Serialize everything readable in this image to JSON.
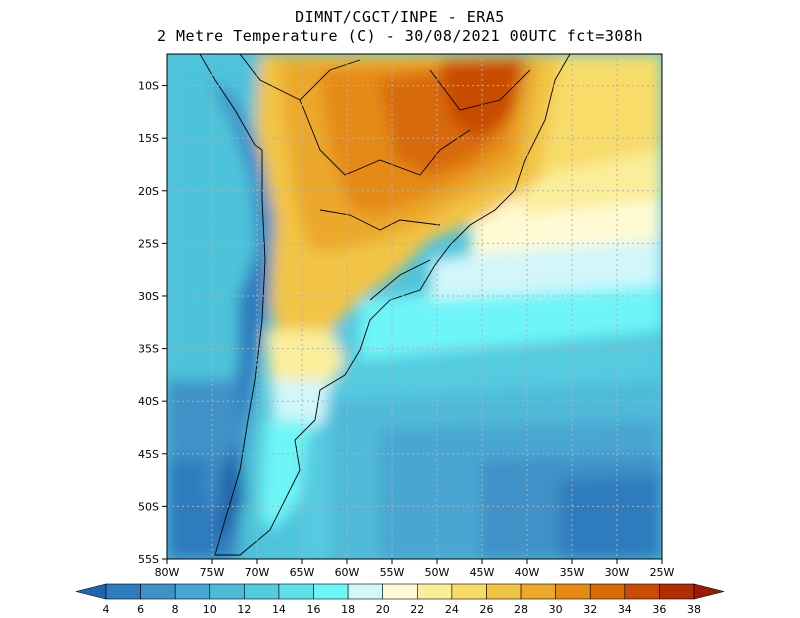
{
  "header": {
    "line1": "DIMNT/CGCT/INPE -  ERA5",
    "line2": "2 Metre Temperature (C) -  30/08/2021 00UTC fct=308h"
  },
  "map": {
    "lon_range": [
      -80,
      -25
    ],
    "lat_range": [
      -55,
      -7
    ],
    "lon_ticks": [
      {
        "value": -80,
        "label": "80W"
      },
      {
        "value": -75,
        "label": "75W"
      },
      {
        "value": -70,
        "label": "70W"
      },
      {
        "value": -65,
        "label": "65W"
      },
      {
        "value": -60,
        "label": "60W"
      },
      {
        "value": -55,
        "label": "55W"
      },
      {
        "value": -50,
        "label": "50W"
      },
      {
        "value": -45,
        "label": "45W"
      },
      {
        "value": -40,
        "label": "40W"
      },
      {
        "value": -35,
        "label": "35W"
      },
      {
        "value": -30,
        "label": "30W"
      },
      {
        "value": -25,
        "label": "25W"
      }
    ],
    "lat_ticks": [
      {
        "value": -10,
        "label": "10S"
      },
      {
        "value": -15,
        "label": "15S"
      },
      {
        "value": -20,
        "label": "20S"
      },
      {
        "value": -25,
        "label": "25S"
      },
      {
        "value": -30,
        "label": "30S"
      },
      {
        "value": -35,
        "label": "35S"
      },
      {
        "value": -40,
        "label": "40S"
      },
      {
        "value": -45,
        "label": "45S"
      },
      {
        "value": -50,
        "label": "50S"
      },
      {
        "value": -55,
        "label": "55S"
      }
    ]
  },
  "colorbar": {
    "labels": [
      "4",
      "6",
      "8",
      "10",
      "12",
      "14",
      "16",
      "18",
      "20",
      "22",
      "24",
      "26",
      "28",
      "30",
      "32",
      "34",
      "36",
      "38"
    ],
    "colors": [
      "#2166ac",
      "#2f7bbd",
      "#3f91c8",
      "#4aa6d2",
      "#4fbad8",
      "#55cbe0",
      "#5ee0ea",
      "#6ef5f8",
      "#d2f6fa",
      "#fffad4",
      "#fbee9a",
      "#f7dc6a",
      "#f2c445",
      "#eba829",
      "#e58a12",
      "#d86a08",
      "#c84c06",
      "#b02e05",
      "#9a1a04"
    ]
  }
}
